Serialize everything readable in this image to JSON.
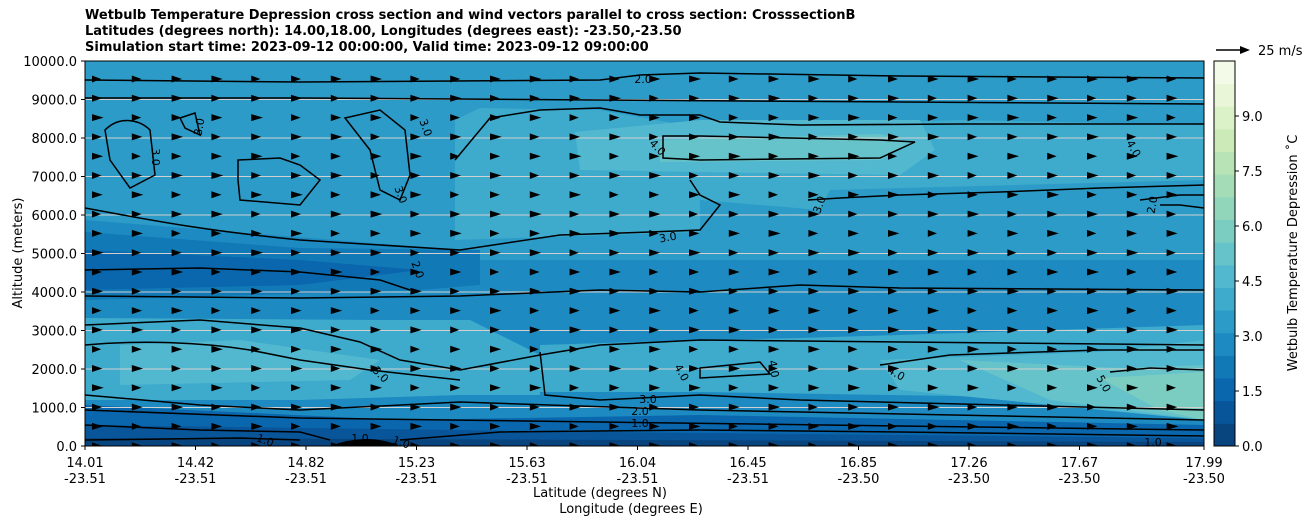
{
  "chart_data": {
    "type": "contour",
    "title_lines": [
      "Wetbulb Temperature Depression cross section and wind vectors parallel to cross section: CrosssectionB",
      "Latitudes (degrees north): 14.00,18.00, Longitudes (degrees east): -23.50,-23.50",
      "Simulation start time: 2023-09-12 00:00:00, Valid time: 2023-09-12 09:00:00"
    ],
    "ylabel": "Altitude (meters)",
    "xlabel_lat": "Latitude (degrees N)",
    "xlabel_lon": "Longitude (degrees E)",
    "ylim": [
      0,
      10000
    ],
    "yticks": [
      "0.0",
      "1000.0",
      "2000.0",
      "3000.0",
      "4000.0",
      "5000.0",
      "6000.0",
      "7000.0",
      "8000.0",
      "9000.0",
      "10000.0"
    ],
    "xticks": [
      {
        "lat": "14.01",
        "lon": "-23.51"
      },
      {
        "lat": "14.42",
        "lon": "-23.51"
      },
      {
        "lat": "14.82",
        "lon": "-23.51"
      },
      {
        "lat": "15.23",
        "lon": "-23.51"
      },
      {
        "lat": "15.63",
        "lon": "-23.51"
      },
      {
        "lat": "16.04",
        "lon": "-23.51"
      },
      {
        "lat": "16.45",
        "lon": "-23.51"
      },
      {
        "lat": "16.85",
        "lon": "-23.50"
      },
      {
        "lat": "17.26",
        "lon": "-23.50"
      },
      {
        "lat": "17.67",
        "lon": "-23.50"
      },
      {
        "lat": "17.99",
        "lon": "-23.50"
      }
    ],
    "colorbar": {
      "label": "Wetbulb Temperature Depression ˚C",
      "range": [
        0,
        10.5
      ],
      "ticks": [
        "0.0",
        "1.5",
        "3.0",
        "4.5",
        "6.0",
        "7.5",
        "9.0"
      ],
      "colors": [
        "#08457e",
        "#09559a",
        "#0a67ad",
        "#1279b7",
        "#1d8bc1",
        "#2c9bc8",
        "#3eaacc",
        "#52b8cf",
        "#66c3c9",
        "#7ccdc1",
        "#91d5bb",
        "#a5dcb8",
        "#b8e3b6",
        "#cbeab7",
        "#dbf1c8",
        "#e9f6d8",
        "#f4fae8"
      ]
    },
    "wind_key": "25 m/s",
    "contour_levels": [
      1.0,
      2.0,
      3.0,
      4.0,
      5.0
    ],
    "contour_labels": [
      "2.0",
      "3.0",
      "3.0",
      "3.0",
      "3.0",
      "4.0",
      "4.0",
      "2.0",
      "3.0",
      "3.0",
      "2.0",
      "3.0",
      "4.0",
      "4.0",
      "4.0",
      "5.0",
      "3.0",
      "2.0",
      "1.0",
      "1.0",
      "1.0",
      "1.0",
      "1.0"
    ]
  }
}
